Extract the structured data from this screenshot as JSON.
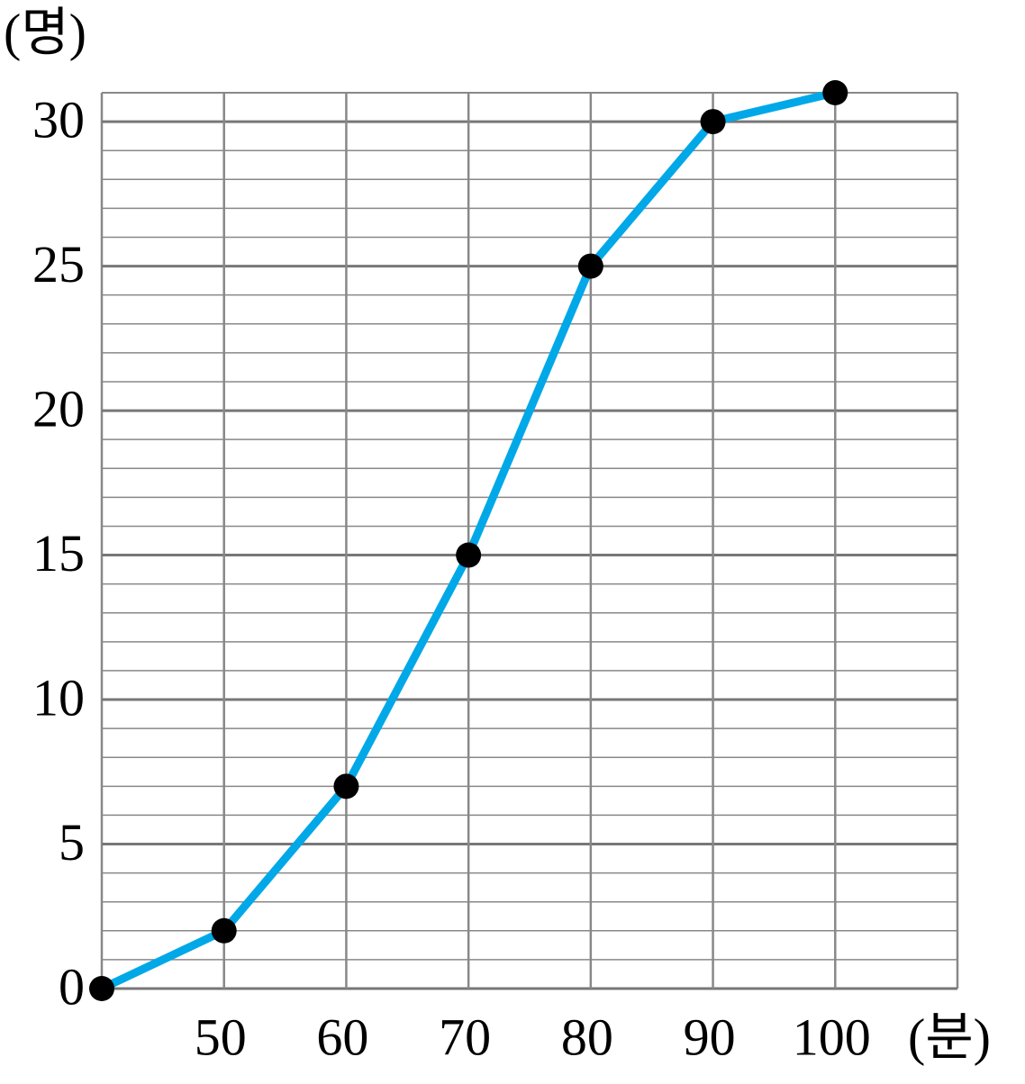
{
  "chart_data": {
    "type": "line",
    "y_label": "(명)",
    "x_label": "(분)",
    "x": [
      40,
      50,
      60,
      70,
      80,
      90,
      100
    ],
    "series": [
      {
        "color": "#00a8e8",
        "values": [
          0,
          2,
          7,
          15,
          25,
          30,
          31
        ]
      }
    ],
    "xlim": [
      40,
      110
    ],
    "xticks": [
      50,
      60,
      70,
      80,
      90,
      100
    ],
    "ylim": [
      0,
      31
    ],
    "yticks": [
      0,
      5,
      10,
      15,
      20,
      25,
      30
    ],
    "grid": true,
    "marker_color": "#000000"
  }
}
